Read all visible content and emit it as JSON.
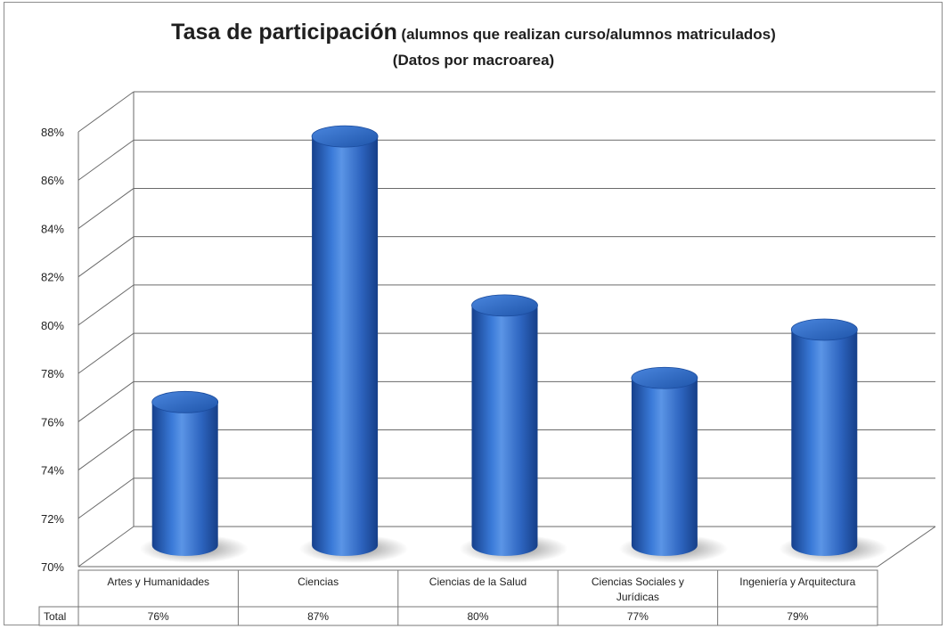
{
  "chart_data": {
    "type": "bar",
    "title": "Tasa de participación",
    "title_suffix": "(alumnos que realizan curso/alumnos matriculados)",
    "subtitle": "(Datos por macroarea)",
    "categories": [
      "Artes y Humanidades",
      "Ciencias",
      "Ciencias de la Salud",
      "Ciencias Sociales y Jurídicas",
      "Ingeniería y Arquitectura"
    ],
    "series": [
      {
        "name": "Total",
        "values": [
          76,
          87,
          80,
          77,
          79
        ],
        "labels": [
          "76%",
          "87%",
          "80%",
          "77%",
          "79%"
        ]
      }
    ],
    "ylim": [
      70,
      88
    ],
    "yticks": [
      "70%",
      "72%",
      "74%",
      "76%",
      "78%",
      "80%",
      "82%",
      "84%",
      "86%",
      "88%"
    ],
    "grid": true,
    "style": "3d-cylinder",
    "bar_color": "#2e66c0",
    "data_table": true
  }
}
